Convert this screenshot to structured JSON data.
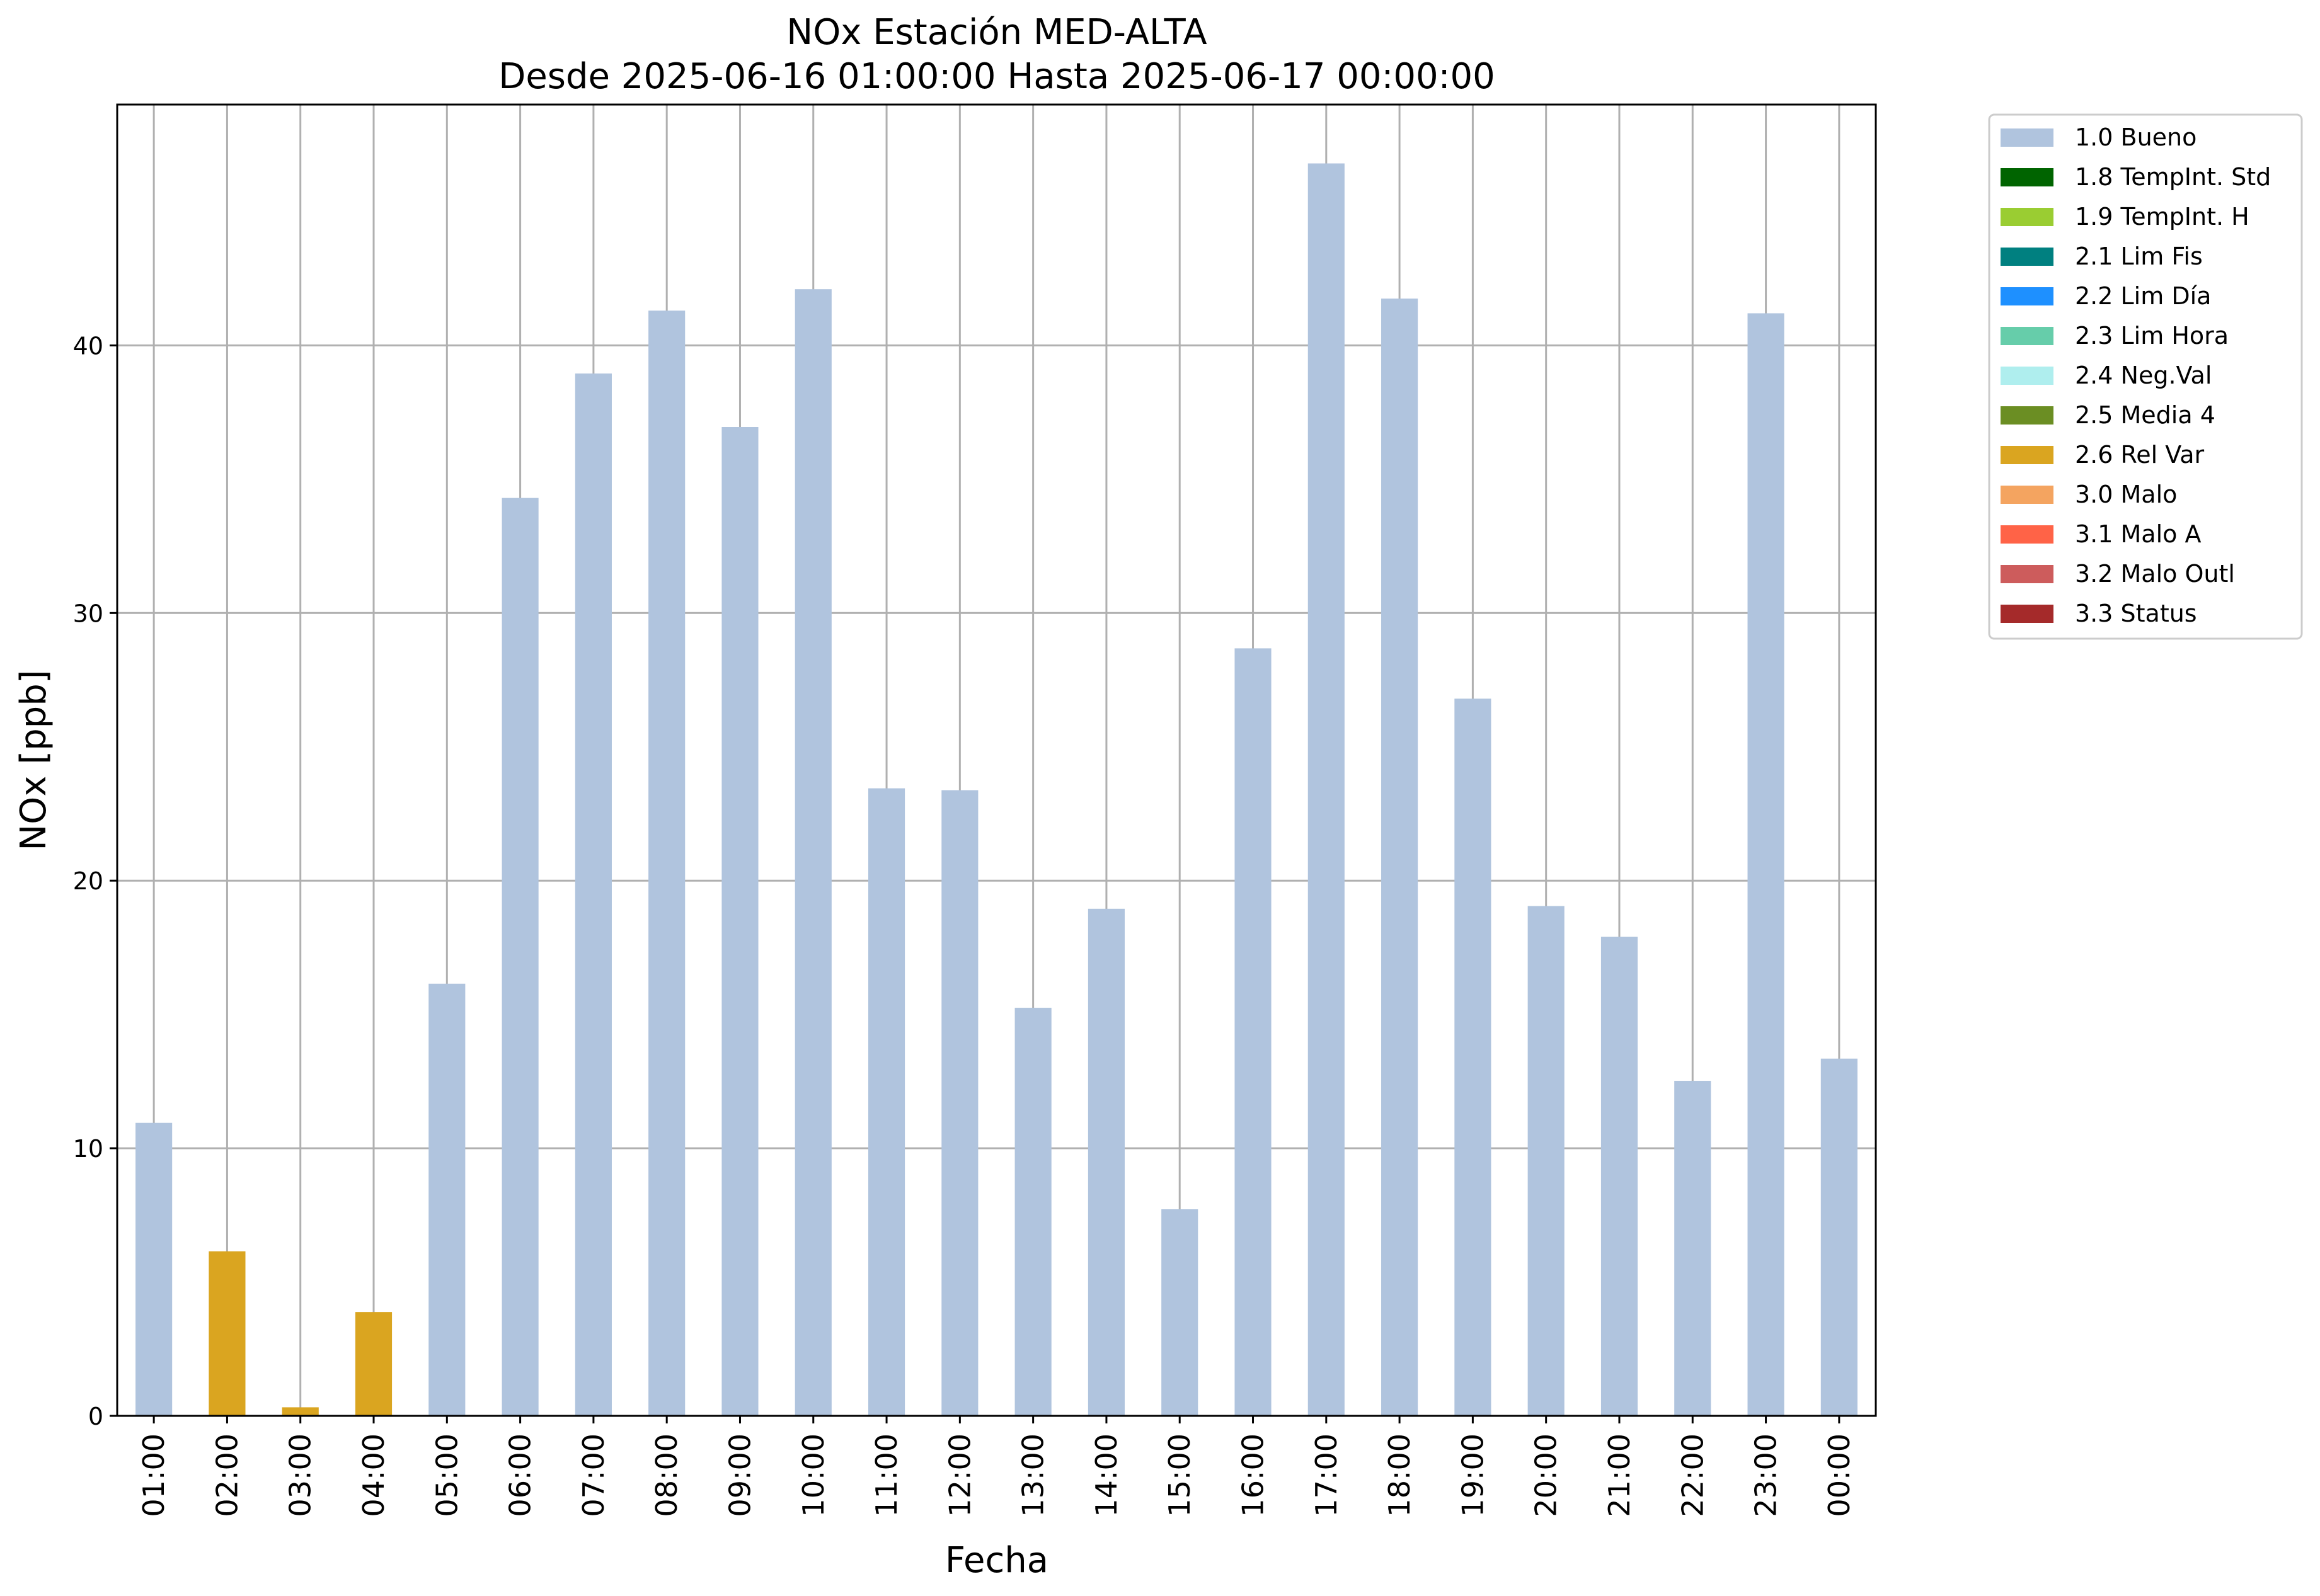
{
  "chart_data": {
    "type": "bar",
    "title": "NOx Estación MED-ALTA",
    "subtitle": "Desde 2025-06-16 01:00:00 Hasta 2025-06-17 00:00:00",
    "xlabel": "Fecha",
    "ylabel": "NOx [ppb]",
    "ylim": [
      0,
      49
    ],
    "yticks": [
      0,
      10,
      20,
      30,
      40
    ],
    "grid": true,
    "legend_position": "outside-right-top",
    "categories": [
      "01:00",
      "02:00",
      "03:00",
      "04:00",
      "05:00",
      "06:00",
      "07:00",
      "08:00",
      "09:00",
      "10:00",
      "11:00",
      "12:00",
      "13:00",
      "14:00",
      "15:00",
      "16:00",
      "17:00",
      "18:00",
      "19:00",
      "20:00",
      "21:00",
      "22:00",
      "23:00",
      "00:00"
    ],
    "values": [
      10.95,
      6.15,
      0.32,
      3.88,
      16.15,
      34.3,
      38.95,
      41.3,
      36.95,
      42.1,
      23.45,
      23.38,
      15.25,
      18.95,
      7.72,
      28.68,
      46.8,
      41.75,
      26.8,
      19.05,
      17.9,
      12.52,
      41.2,
      13.35
    ],
    "flags": [
      "1.0 Bueno",
      "2.6 Rel Var",
      "2.6 Rel Var",
      "2.6 Rel Var",
      "1.0 Bueno",
      "1.0 Bueno",
      "1.0 Bueno",
      "1.0 Bueno",
      "1.0 Bueno",
      "1.0 Bueno",
      "1.0 Bueno",
      "1.0 Bueno",
      "1.0 Bueno",
      "1.0 Bueno",
      "1.0 Bueno",
      "1.0 Bueno",
      "1.0 Bueno",
      "1.0 Bueno",
      "1.0 Bueno",
      "1.0 Bueno",
      "1.0 Bueno",
      "1.0 Bueno",
      "1.0 Bueno",
      "1.0 Bueno"
    ],
    "legend": [
      {
        "label": "1.0 Bueno",
        "color": "#b0c4de"
      },
      {
        "label": "1.8 TempInt. Std",
        "color": "#006400"
      },
      {
        "label": "1.9 TempInt. H",
        "color": "#9acd32"
      },
      {
        "label": "2.1 Lim Fis",
        "color": "#008080"
      },
      {
        "label": "2.2 Lim Día",
        "color": "#1e90ff"
      },
      {
        "label": "2.3 Lim Hora",
        "color": "#66cdaa"
      },
      {
        "label": "2.4 Neg.Val",
        "color": "#afeeee"
      },
      {
        "label": "2.5 Media 4",
        "color": "#6b8e23"
      },
      {
        "label": "2.6 Rel Var",
        "color": "#daa520"
      },
      {
        "label": "3.0 Malo",
        "color": "#f4a460"
      },
      {
        "label": "3.1 Malo A",
        "color": "#ff6347"
      },
      {
        "label": "3.2 Malo Outl",
        "color": "#cd5c5c"
      },
      {
        "label": "3.3 Status",
        "color": "#a52a2a"
      }
    ]
  }
}
